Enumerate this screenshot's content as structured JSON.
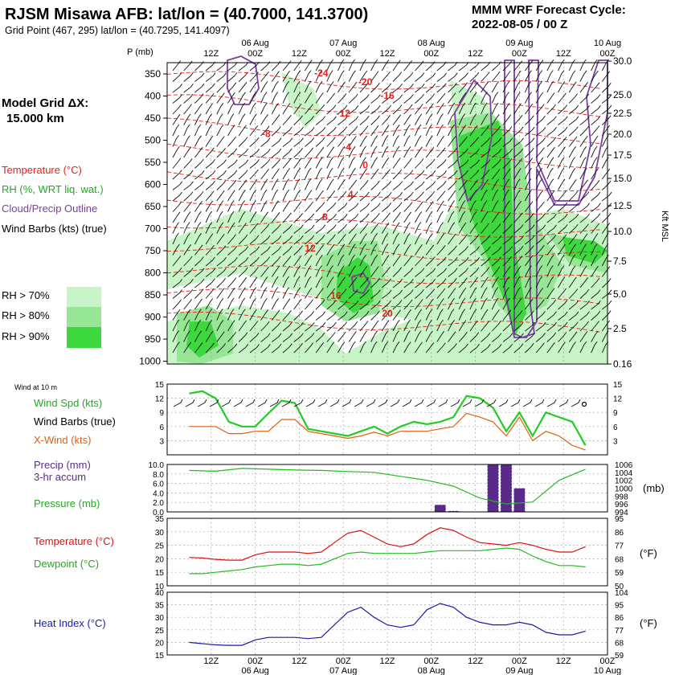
{
  "header": {
    "title": "RJSM Misawa AFB:  lat/lon = (40.7000, 141.3700)",
    "subtitle": "Grid Point (467, 295) lat/lon = (40.7295, 141.4097)",
    "cycle_line1": "MMM WRF Forecast Cycle:",
    "cycle_line2": "2022-08-05 / 00  Z"
  },
  "side": {
    "grid_line1": "Model Grid ΔX:",
    "grid_line2": "15.000 km",
    "legend_temp": "Temperature (°C)",
    "legend_rh": "RH (%, WRT liq. wat.)",
    "legend_cloud": "Cloud/Precip Outline",
    "legend_wind": "Wind Barbs (kts) (true)",
    "rh70": "RH > 70%",
    "rh80": "RH > 80%",
    "rh90": "RH > 90%",
    "p_label": "P (mb)",
    "kft_label": "Kft MSL"
  },
  "colors": {
    "temp": "#e8201c",
    "rh70": "#c8f5c8",
    "rh80": "#96e696",
    "rh90": "#3dd83d",
    "cloud": "#7b3fa0",
    "wspd": "#22cc22",
    "xwind": "#e06010",
    "precip": "#5a2a8a",
    "pressure": "#22bb22",
    "templine": "#dd1111",
    "dewline": "#22bb22",
    "heat": "#1a1aaa"
  },
  "time_axis": {
    "major_ticks": [
      "12Z",
      "00Z",
      "12Z",
      "00Z",
      "12Z",
      "00Z",
      "12Z",
      "00Z",
      "12Z",
      "00Z"
    ],
    "date_labels": [
      "06 Aug",
      "07 Aug",
      "08 Aug",
      "09 Aug",
      "10 Aug"
    ]
  },
  "chart_data": [
    {
      "type": "heatmap",
      "name": "cross-section",
      "ylabel": "P (mb)",
      "y2label": "Kft MSL",
      "pressure_ticks": [
        "350",
        "400",
        "450",
        "500",
        "550",
        "600",
        "650",
        "700",
        "750",
        "800",
        "850",
        "900",
        "950",
        "1000"
      ],
      "height_ticks": [
        "30.0",
        "25.0",
        "22.5",
        "20.0",
        "17.5",
        "15.0",
        "12.5",
        "10.0",
        "7.5",
        "5.0",
        "2.5",
        "0.16"
      ],
      "temperature_labels": [
        {
          "t": 30,
          "p": 360,
          "v": "-24"
        },
        {
          "t": 42,
          "p": 380,
          "v": "-20"
        },
        {
          "t": 48,
          "p": 410,
          "v": "-16"
        },
        {
          "t": 36,
          "p": 450,
          "v": "-12"
        },
        {
          "t": 15,
          "p": 495,
          "v": "-8"
        },
        {
          "t": 37,
          "p": 525,
          "v": "-4"
        },
        {
          "t": 42,
          "p": 565,
          "v": "0"
        },
        {
          "t": 38,
          "p": 630,
          "v": "4"
        },
        {
          "t": 31,
          "p": 680,
          "v": "8"
        },
        {
          "t": 27,
          "p": 750,
          "v": "12"
        },
        {
          "t": 34,
          "p": 855,
          "v": "16"
        },
        {
          "t": 48,
          "p": 895,
          "v": "20"
        }
      ]
    },
    {
      "type": "line",
      "name": "wind at 10 m",
      "title": "Wind at 10 m",
      "ylim": [
        0,
        15
      ],
      "yticks": [
        "15",
        "12",
        "9",
        "6",
        "3"
      ],
      "series": [
        {
          "name": "Wind Spd (kts)",
          "color": "#22cc22",
          "x": [
            0,
            3,
            6,
            9,
            12,
            15,
            18,
            21,
            24,
            27,
            30,
            33,
            36,
            39,
            42,
            45,
            48,
            51,
            54,
            57,
            60,
            63,
            66,
            69,
            72,
            75,
            78,
            81,
            84,
            87,
            90
          ],
          "values": [
            13,
            13.5,
            12,
            7,
            6,
            6,
            8.8,
            11.5,
            11,
            5.5,
            5,
            4.5,
            4,
            5,
            6,
            4.5,
            6,
            7,
            6.5,
            7,
            8,
            12.5,
            12,
            10,
            5,
            9,
            4,
            9,
            8,
            7,
            2
          ]
        },
        {
          "name": "X-Wind (kts)",
          "color": "#e06010",
          "x": [
            0,
            3,
            6,
            9,
            12,
            15,
            18,
            21,
            24,
            27,
            30,
            33,
            36,
            39,
            42,
            45,
            48,
            51,
            54,
            57,
            60,
            63,
            66,
            69,
            72,
            75,
            78,
            81,
            84,
            87,
            90
          ],
          "values": [
            6,
            6,
            6,
            4.5,
            4.5,
            5,
            5,
            7.5,
            7.5,
            5,
            4.5,
            4,
            3.5,
            4,
            4.8,
            4,
            5,
            5,
            5,
            5.5,
            6,
            8.8,
            8,
            7,
            4,
            8,
            3,
            5,
            4,
            2,
            1
          ]
        }
      ]
    },
    {
      "type": "bar",
      "name": "precip and pressure",
      "ylim": [
        0,
        10
      ],
      "yticks": [
        "10.0",
        "8.0",
        "6.0",
        "4.0",
        "2.0",
        "0.0"
      ],
      "y2ticks": [
        "1006",
        "1004",
        "1002",
        "1000",
        "998",
        "996",
        "994"
      ],
      "series": [
        {
          "name": "Precip (mm) 3-hr accum",
          "color": "#5a2a8a",
          "x": [
            0,
            3,
            6,
            9,
            12,
            15,
            18,
            21,
            24,
            27,
            30,
            33,
            36,
            39,
            42,
            45,
            48,
            51,
            54,
            57,
            60,
            63,
            66,
            69,
            72,
            75,
            78,
            81,
            84,
            87,
            90
          ],
          "values": [
            0,
            0,
            0,
            0,
            0,
            0,
            0,
            0,
            0,
            0,
            0,
            0,
            0,
            0,
            0,
            0,
            0,
            0,
            0,
            1.5,
            0.2,
            0,
            0,
            10,
            10,
            5,
            0,
            0,
            0,
            0,
            0
          ]
        },
        {
          "name": "Pressure (mb)",
          "color": "#22bb22",
          "x": [
            0,
            6,
            12,
            18,
            24,
            30,
            36,
            42,
            48,
            54,
            60,
            66,
            72,
            78,
            84,
            90
          ],
          "values": [
            1004.5,
            1004.3,
            1005,
            1004.8,
            1004.6,
            1004.5,
            1004.2,
            1004,
            1003,
            1002,
            1000.5,
            997.5,
            996,
            996.5,
            1002,
            1004.8
          ]
        }
      ]
    },
    {
      "type": "line",
      "name": "temperature and dewpoint",
      "ylim": [
        10,
        35
      ],
      "yticks": [
        "35",
        "30",
        "25",
        "20",
        "15",
        "10"
      ],
      "y2ticks": [
        "95",
        "86",
        "77",
        "68",
        "59",
        "50"
      ],
      "series": [
        {
          "name": "Temperature (°C)",
          "color": "#dd1111",
          "x": [
            0,
            3,
            6,
            9,
            12,
            15,
            18,
            21,
            24,
            27,
            30,
            33,
            36,
            39,
            42,
            45,
            48,
            51,
            54,
            57,
            60,
            63,
            66,
            69,
            72,
            75,
            78,
            81,
            84,
            87,
            90
          ],
          "values": [
            20.5,
            20.3,
            19.8,
            19.5,
            19.5,
            21.5,
            22.5,
            22.5,
            22.5,
            22,
            22.5,
            26,
            29.5,
            30.5,
            28,
            25.5,
            24.5,
            25.5,
            29,
            31.5,
            30.5,
            28,
            26,
            25.5,
            25,
            26,
            25,
            23.5,
            22.5,
            22.5,
            24.5
          ]
        },
        {
          "name": "Dewpoint (°C)",
          "color": "#22bb22",
          "x": [
            0,
            3,
            6,
            9,
            12,
            15,
            18,
            21,
            24,
            27,
            30,
            33,
            36,
            39,
            42,
            45,
            48,
            51,
            54,
            57,
            60,
            63,
            66,
            69,
            72,
            75,
            78,
            81,
            84,
            87,
            90
          ],
          "values": [
            14.5,
            14.5,
            15,
            15.5,
            16,
            17,
            17.5,
            18,
            18,
            17.5,
            18,
            20,
            22,
            22.5,
            22,
            22,
            22,
            22,
            22.5,
            23,
            23,
            23,
            23,
            23.5,
            24,
            23.5,
            21,
            19,
            17.5,
            17.5,
            17
          ]
        }
      ]
    },
    {
      "type": "line",
      "name": "heat index",
      "ylim": [
        15,
        40
      ],
      "yticks": [
        "40",
        "35",
        "30",
        "25",
        "20",
        "15"
      ],
      "y2ticks": [
        "104",
        "95",
        "86",
        "77",
        "68",
        "59"
      ],
      "series": [
        {
          "name": "Heat Index (°C)",
          "color": "#1a1aaa",
          "x": [
            0,
            3,
            6,
            9,
            12,
            15,
            18,
            21,
            24,
            27,
            30,
            33,
            36,
            39,
            42,
            45,
            48,
            51,
            54,
            57,
            60,
            63,
            66,
            69,
            72,
            75,
            78,
            81,
            84,
            87,
            90
          ],
          "values": [
            20,
            19.5,
            19,
            18.8,
            18.8,
            21,
            22,
            22,
            22,
            21.5,
            22,
            27,
            32,
            34,
            30,
            27,
            26,
            27,
            33,
            35.5,
            34,
            30,
            28,
            27,
            27,
            28,
            27,
            24,
            23,
            23,
            24.5
          ]
        }
      ]
    }
  ],
  "labels": {
    "wind10": "Wind at 10 m",
    "wspd": "Wind Spd (kts)",
    "wbarbs": "Wind Barbs (true)",
    "xwind": "X-Wind (kts)",
    "precip1": "Precip (mm)",
    "precip2": "3-hr accum",
    "pressure": "Pressure (mb)",
    "pressure_unit": "(mb)",
    "temp": "Temperature (°C)",
    "dew": "Dewpoint (°C)",
    "degf": "(°F)",
    "heat": "Heat Index (°C)",
    "degf2": "(°F)"
  }
}
